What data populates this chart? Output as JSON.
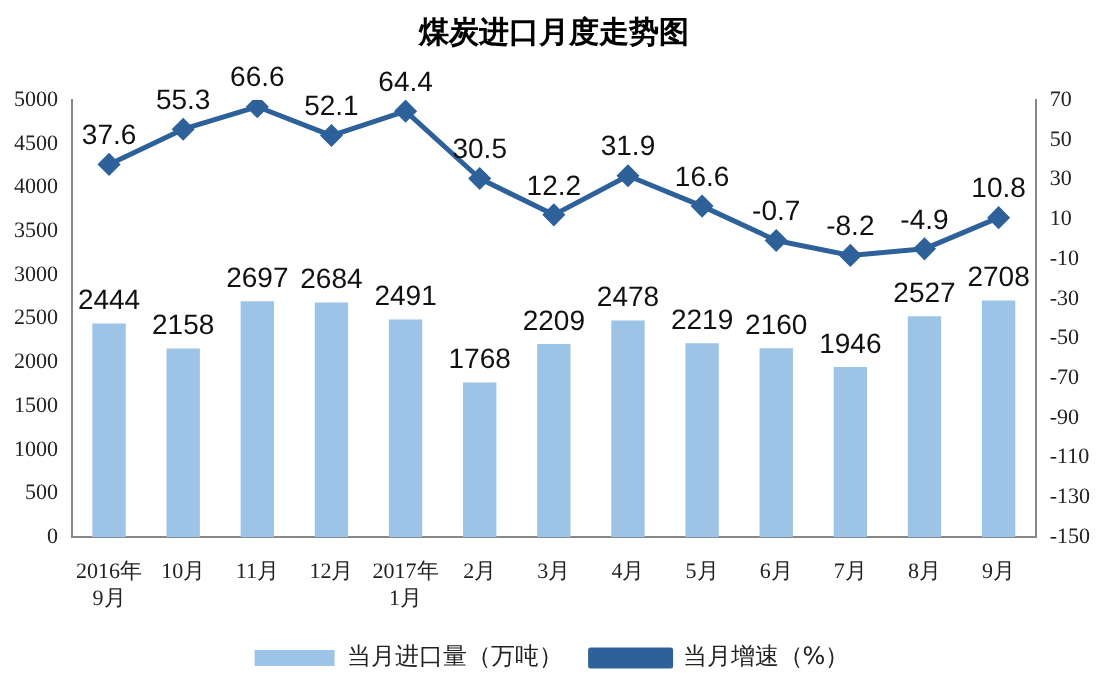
{
  "chart_data": {
    "type": "bar",
    "title": "煤炭进口月度走势图",
    "categories": [
      "2016年\n9月",
      "10月",
      "11月",
      "12月",
      "2017年\n1月",
      "2月",
      "3月",
      "4月",
      "5月",
      "6月",
      "7月",
      "8月",
      "9月"
    ],
    "series": [
      {
        "name": "当月进口量（万吨）",
        "color": "#9dc3e6",
        "values": [
          2444,
          2158,
          2697,
          2684,
          2491,
          1768,
          2209,
          2478,
          2219,
          2160,
          1946,
          2527,
          2708
        ]
      },
      {
        "name": "当月增速（%）",
        "type": "line",
        "axis": "y2",
        "color": "#2e6199",
        "marker": "diamond",
        "values": [
          37.6,
          55.3,
          66.6,
          52.1,
          64.4,
          30.5,
          12.2,
          31.9,
          16.6,
          -0.7,
          -8.2,
          -4.9,
          10.8
        ]
      }
    ],
    "ylim": [
      0,
      5000
    ],
    "yticks": [
      0,
      500,
      1000,
      1500,
      2000,
      2500,
      3000,
      3500,
      4000,
      4500,
      5000
    ],
    "y2lim": [
      -150,
      70
    ],
    "y2ticks": [
      -150,
      -130,
      -110,
      -90,
      -70,
      -50,
      -30,
      -10,
      10,
      30,
      50,
      70
    ],
    "data_labels": true,
    "grid": false,
    "legend": "bottom"
  }
}
